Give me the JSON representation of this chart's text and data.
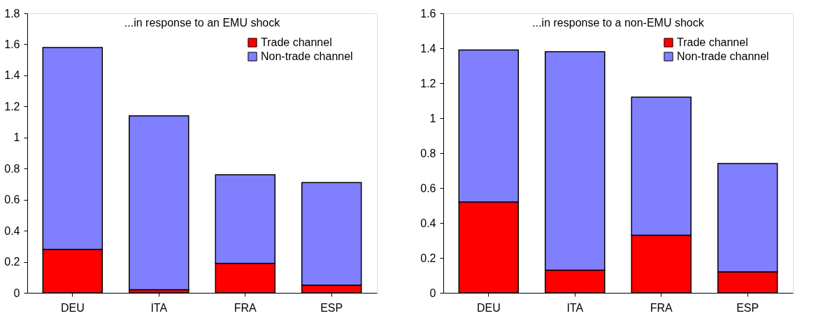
{
  "chart_data": [
    {
      "type": "bar",
      "title": "...in response to an EMU shock",
      "categories": [
        "DEU",
        "ITA",
        "FRA",
        "ESP"
      ],
      "stacked": true,
      "legend": "top right",
      "grid": false,
      "ylim": [
        0,
        1.8
      ],
      "yticks": [
        0,
        0.2,
        0.4,
        0.6,
        0.8,
        1,
        1.2,
        1.4,
        1.6,
        1.8
      ],
      "series": [
        {
          "name": "Trade channel",
          "color": "#ff0000",
          "values": [
            0.28,
            0.02,
            0.19,
            0.05
          ]
        },
        {
          "name": "Non-trade channel",
          "color": "#8080ff",
          "values": [
            1.3,
            1.12,
            0.57,
            0.66
          ]
        }
      ]
    },
    {
      "type": "bar",
      "title": "...in response to a non-EMU shock",
      "categories": [
        "DEU",
        "ITA",
        "FRA",
        "ESP"
      ],
      "stacked": true,
      "legend": "top right",
      "grid": false,
      "ylim": [
        0,
        1.6
      ],
      "yticks": [
        0,
        0.2,
        0.4,
        0.6,
        0.8,
        1,
        1.2,
        1.4,
        1.6
      ],
      "series": [
        {
          "name": "Trade channel",
          "color": "#ff0000",
          "values": [
            0.52,
            0.13,
            0.33,
            0.12
          ]
        },
        {
          "name": "Non-trade channel",
          "color": "#8080ff",
          "values": [
            0.87,
            1.25,
            0.79,
            0.62
          ]
        }
      ]
    }
  ]
}
